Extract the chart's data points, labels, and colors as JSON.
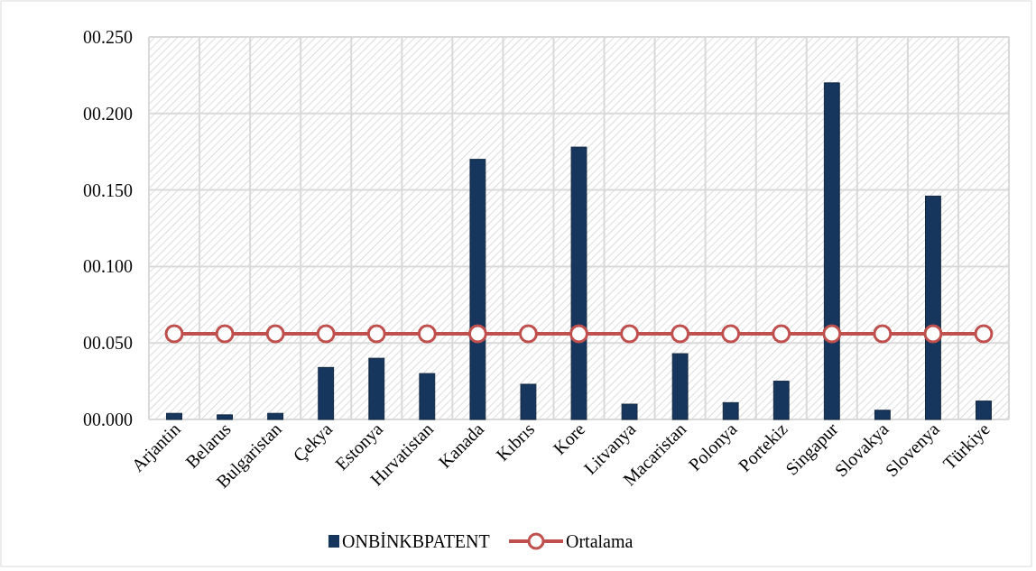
{
  "chart_data": {
    "type": "bar",
    "categories": [
      "Arjantin",
      "Belarus",
      "Bulgaristan",
      "Çekya",
      "Estonya",
      "Hırvatistan",
      "Kanada",
      "Kıbrıs",
      "Kore",
      "Litvanya",
      "Macaristan",
      "Polonya",
      "Portekiz",
      "Singapur",
      "Slovakya",
      "Slovenya",
      "Türkiye"
    ],
    "series": [
      {
        "name": "ONBİNKBPATENT",
        "color": "#17365d",
        "values": [
          0.004,
          0.003,
          0.004,
          0.034,
          0.04,
          0.03,
          0.17,
          0.023,
          0.178,
          0.01,
          0.043,
          0.011,
          0.025,
          0.22,
          0.006,
          0.146,
          0.012
        ]
      },
      {
        "name": "Ortalama",
        "type": "line",
        "color": "#c0504d",
        "marker": "circle",
        "values": [
          0.056,
          0.056,
          0.056,
          0.056,
          0.056,
          0.056,
          0.056,
          0.056,
          0.056,
          0.056,
          0.056,
          0.056,
          0.056,
          0.056,
          0.056,
          0.056,
          0.056
        ]
      }
    ],
    "ylim": [
      0,
      0.25
    ],
    "yticks": [
      {
        "value": 0,
        "label": "00.000"
      },
      {
        "value": 0.05,
        "label": "00.050"
      },
      {
        "value": 0.1,
        "label": "00.100"
      },
      {
        "value": 0.15,
        "label": "00.150"
      },
      {
        "value": 0.2,
        "label": "00.200"
      },
      {
        "value": 0.25,
        "label": "00.250"
      }
    ],
    "grid": true,
    "legend": "bottom"
  }
}
